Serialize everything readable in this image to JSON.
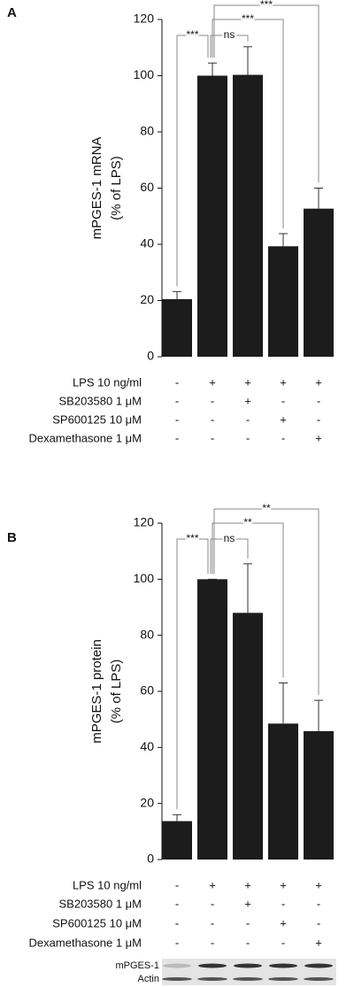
{
  "chart_data": [
    {
      "type": "bar",
      "panel": "A",
      "ylabel": [
        "mPGES-1 mRNA",
        "(% of LPS)"
      ],
      "values": [
        20.5,
        100,
        100.3,
        39.3,
        52.7
      ],
      "errors": [
        2.7,
        4.5,
        10,
        4.5,
        7.3
      ],
      "color": "#1c1c1c",
      "ylim": [
        0,
        120
      ],
      "yticks": [
        0,
        20,
        40,
        60,
        80,
        100,
        120
      ],
      "annotations": [
        "***",
        "ns",
        "***",
        "***"
      ],
      "treatments": [
        {
          "label": "LPS 10 ng/ml",
          "signs": [
            "-",
            "+",
            "+",
            "+",
            "+"
          ]
        },
        {
          "label": "SB203580 1 μM",
          "signs": [
            "-",
            "-",
            "+",
            "-",
            "-"
          ]
        },
        {
          "label": "SP600125 10 μM",
          "signs": [
            "-",
            "-",
            "-",
            "+",
            "-"
          ]
        },
        {
          "label": "Dexamethasone 1 μM",
          "signs": [
            "-",
            "-",
            "-",
            "-",
            "+"
          ]
        }
      ]
    },
    {
      "type": "bar",
      "panel": "B",
      "ylabel": [
        "mPGES-1 protein",
        "(% of LPS)"
      ],
      "values": [
        13.7,
        100,
        88,
        48.5,
        45.8
      ],
      "errors": [
        2.3,
        0,
        17.5,
        14.5,
        11
      ],
      "color": "#1c1c1c",
      "ylim": [
        0,
        120
      ],
      "yticks": [
        0,
        20,
        40,
        60,
        80,
        100,
        120
      ],
      "annotations": [
        "***",
        "ns",
        "**",
        "**"
      ],
      "treatments": [
        {
          "label": "LPS 10 ng/ml",
          "signs": [
            "-",
            "+",
            "+",
            "+",
            "+"
          ]
        },
        {
          "label": "SB203580 1 μM",
          "signs": [
            "-",
            "-",
            "+",
            "-",
            "-"
          ]
        },
        {
          "label": "SP600125 10 μM",
          "signs": [
            "-",
            "-",
            "-",
            "+",
            "-"
          ]
        },
        {
          "label": "Dexamethasone 1 μM",
          "signs": [
            "-",
            "-",
            "-",
            "-",
            "+"
          ]
        }
      ],
      "blot": [
        "mPGES-1",
        "Actin"
      ]
    }
  ]
}
